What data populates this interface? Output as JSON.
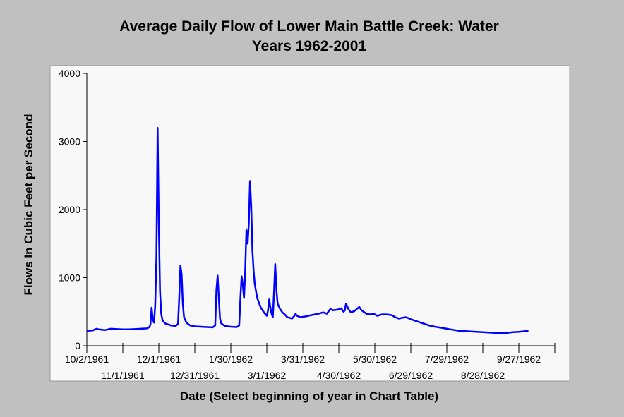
{
  "chart_data": {
    "type": "line",
    "title_line1": "Average Daily Flow of Lower Main Battle Creek: Water",
    "title_line2": "Years 1962-2001",
    "xlabel": "Date (Select beginning of year in Chart Table)",
    "ylabel": "Flows In Cubic Feet per Second",
    "ylim": [
      0,
      4000
    ],
    "xlim_days": [
      0,
      390
    ],
    "y_ticks": [
      {
        "value": 0,
        "label": "0"
      },
      {
        "value": 1000,
        "label": "1000"
      },
      {
        "value": 2000,
        "label": "2000"
      },
      {
        "value": 3000,
        "label": "3000"
      },
      {
        "value": 4000,
        "label": "4000"
      }
    ],
    "x_ticks": [
      {
        "day": 0,
        "label": "10/2/1961",
        "row": 1
      },
      {
        "day": 30,
        "label": "11/1/1961",
        "row": 2
      },
      {
        "day": 60,
        "label": "12/1/1961",
        "row": 1
      },
      {
        "day": 90,
        "label": "12/31/1961",
        "row": 2
      },
      {
        "day": 120,
        "label": "1/30/1962",
        "row": 1
      },
      {
        "day": 150,
        "label": "3/1/1962",
        "row": 2
      },
      {
        "day": 180,
        "label": "3/31/1962",
        "row": 1
      },
      {
        "day": 210,
        "label": "4/30/1962",
        "row": 2
      },
      {
        "day": 240,
        "label": "5/30/1962",
        "row": 1
      },
      {
        "day": 270,
        "label": "6/29/1962",
        "row": 2
      },
      {
        "day": 300,
        "label": "7/29/1962",
        "row": 1
      },
      {
        "day": 330,
        "label": "8/28/1962",
        "row": 2
      },
      {
        "day": 360,
        "label": "9/27/1962",
        "row": 1
      },
      {
        "day": 390,
        "label": "",
        "row": 1
      }
    ],
    "grid": false,
    "series": [
      {
        "color": "#0000ff",
        "points": [
          [
            0,
            220
          ],
          [
            5,
            225
          ],
          [
            8,
            250
          ],
          [
            10,
            240
          ],
          [
            15,
            230
          ],
          [
            20,
            250
          ],
          [
            25,
            245
          ],
          [
            30,
            240
          ],
          [
            35,
            240
          ],
          [
            40,
            245
          ],
          [
            45,
            250
          ],
          [
            50,
            255
          ],
          [
            52,
            270
          ],
          [
            53,
            310
          ],
          [
            54,
            560
          ],
          [
            55,
            380
          ],
          [
            56,
            340
          ],
          [
            57,
            600
          ],
          [
            58,
            1300
          ],
          [
            59,
            3200
          ],
          [
            60,
            1800
          ],
          [
            61,
            800
          ],
          [
            62,
            470
          ],
          [
            63,
            380
          ],
          [
            65,
            330
          ],
          [
            70,
            300
          ],
          [
            74,
            290
          ],
          [
            76,
            320
          ],
          [
            77,
            700
          ],
          [
            78,
            1180
          ],
          [
            79,
            1050
          ],
          [
            80,
            620
          ],
          [
            81,
            420
          ],
          [
            83,
            340
          ],
          [
            86,
            300
          ],
          [
            90,
            285
          ],
          [
            95,
            280
          ],
          [
            100,
            275
          ],
          [
            105,
            270
          ],
          [
            107,
            300
          ],
          [
            108,
            820
          ],
          [
            109,
            1030
          ],
          [
            110,
            700
          ],
          [
            111,
            400
          ],
          [
            112,
            330
          ],
          [
            115,
            290
          ],
          [
            120,
            280
          ],
          [
            125,
            275
          ],
          [
            127,
            300
          ],
          [
            128,
            700
          ],
          [
            129,
            1020
          ],
          [
            130,
            900
          ],
          [
            131,
            700
          ],
          [
            132,
            1100
          ],
          [
            133,
            1700
          ],
          [
            134,
            1500
          ],
          [
            135,
            1800
          ],
          [
            136,
            2420
          ],
          [
            137,
            2050
          ],
          [
            138,
            1400
          ],
          [
            139,
            1100
          ],
          [
            140,
            900
          ],
          [
            142,
            700
          ],
          [
            145,
            560
          ],
          [
            148,
            480
          ],
          [
            150,
            440
          ],
          [
            151,
            520
          ],
          [
            152,
            680
          ],
          [
            153,
            560
          ],
          [
            154,
            470
          ],
          [
            155,
            420
          ],
          [
            156,
            780
          ],
          [
            157,
            1200
          ],
          [
            158,
            820
          ],
          [
            159,
            620
          ],
          [
            161,
            540
          ],
          [
            163,
            490
          ],
          [
            165,
            460
          ],
          [
            167,
            420
          ],
          [
            169,
            410
          ],
          [
            171,
            400
          ],
          [
            173,
            440
          ],
          [
            174,
            470
          ],
          [
            175,
            440
          ],
          [
            178,
            420
          ],
          [
            182,
            430
          ],
          [
            187,
            450
          ],
          [
            193,
            470
          ],
          [
            197,
            490
          ],
          [
            200,
            470
          ],
          [
            203,
            540
          ],
          [
            205,
            520
          ],
          [
            209,
            530
          ],
          [
            212,
            550
          ],
          [
            214,
            500
          ],
          [
            215,
            520
          ],
          [
            216,
            620
          ],
          [
            218,
            540
          ],
          [
            220,
            490
          ],
          [
            223,
            510
          ],
          [
            227,
            570
          ],
          [
            229,
            520
          ],
          [
            233,
            470
          ],
          [
            236,
            460
          ],
          [
            239,
            470
          ],
          [
            242,
            440
          ],
          [
            246,
            460
          ],
          [
            250,
            460
          ],
          [
            254,
            450
          ],
          [
            257,
            420
          ],
          [
            260,
            400
          ],
          [
            263,
            410
          ],
          [
            266,
            420
          ],
          [
            270,
            390
          ],
          [
            275,
            360
          ],
          [
            280,
            330
          ],
          [
            285,
            300
          ],
          [
            290,
            280
          ],
          [
            295,
            265
          ],
          [
            300,
            250
          ],
          [
            305,
            235
          ],
          [
            310,
            220
          ],
          [
            315,
            215
          ],
          [
            320,
            210
          ],
          [
            325,
            205
          ],
          [
            330,
            200
          ],
          [
            335,
            195
          ],
          [
            340,
            190
          ],
          [
            345,
            185
          ],
          [
            350,
            190
          ],
          [
            355,
            200
          ],
          [
            360,
            205
          ],
          [
            363,
            210
          ],
          [
            366,
            215
          ],
          [
            368,
            215
          ]
        ]
      }
    ]
  }
}
